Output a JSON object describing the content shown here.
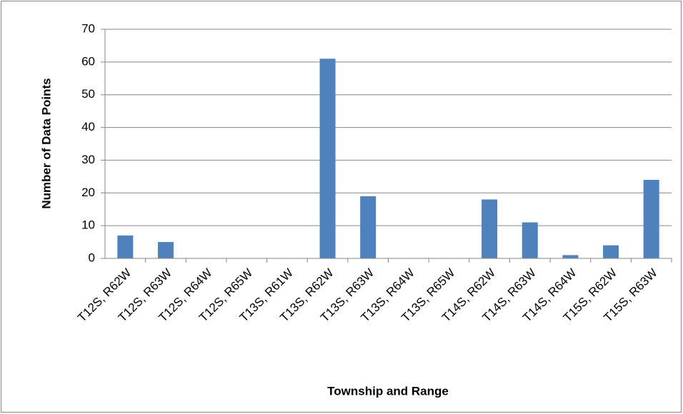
{
  "chart_data": {
    "type": "bar",
    "x_label": "Township and Range",
    "y_label": "Number of Data Points",
    "categories": [
      "T12S, R62W",
      "T12S, R63W",
      "T12S, R64W",
      "T12S, R65W",
      "T13S, R61W",
      "T13S, R62W",
      "T13S, R63W",
      "T13S, R64W",
      "T13S, R65W",
      "T14S, R62W",
      "T14S, R63W",
      "T14S, R64W",
      "T15S, R62W",
      "T15S, R63W"
    ],
    "values": [
      7,
      5,
      0,
      0,
      0,
      61,
      19,
      0,
      0,
      18,
      11,
      1,
      4,
      24
    ],
    "color": "#4f81bd",
    "ylim": [
      0,
      70
    ],
    "yticks": [
      0,
      10,
      20,
      30,
      40,
      50,
      60,
      70
    ],
    "grid": true
  }
}
